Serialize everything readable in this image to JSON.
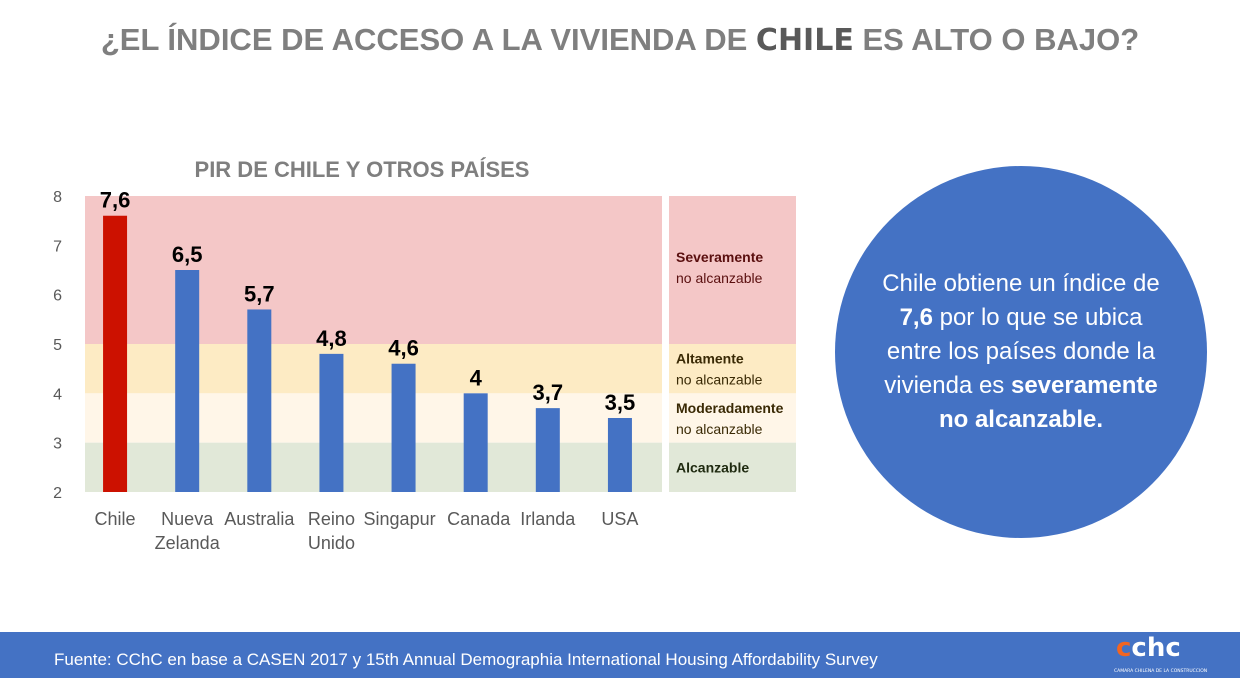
{
  "title": {
    "pre": "¿EL ÍNDICE DE ACCESO A LA VIVIENDA DE ",
    "highlight": "CHILE",
    "post": " ES ALTO O BAJO?"
  },
  "chart_data": {
    "type": "bar",
    "title": "PIR DE CHILE Y OTROS PAÍSES",
    "categories": [
      "Chile",
      "Nueva Zelanda",
      "Australia",
      "Reino Unido",
      "Singapur",
      "Canada",
      "Irlanda",
      "USA"
    ],
    "category_lines": [
      [
        "Chile"
      ],
      [
        "Nueva",
        "Zelanda"
      ],
      [
        "Australia"
      ],
      [
        "Reino",
        "Unido"
      ],
      [
        "Singapur"
      ],
      [
        "Canada"
      ],
      [
        "Irlanda"
      ],
      [
        "USA"
      ]
    ],
    "values": [
      7.6,
      6.5,
      5.7,
      4.8,
      4.6,
      4,
      3.7,
      3.5
    ],
    "data_labels": [
      "7,6",
      "6,5",
      "5,7",
      "4,8",
      "4,6",
      "4",
      "3,7",
      "3,5"
    ],
    "ylim": [
      2,
      8
    ],
    "yticks": [
      2,
      3,
      4,
      5,
      6,
      7,
      8
    ],
    "bar_colors": {
      "highlight": "#cc1100",
      "default": "#4472c4"
    },
    "bands": [
      {
        "from": 5,
        "to": 8,
        "color": "#f4c7c7",
        "label_bold": "Severamente",
        "label": "no alcanzable",
        "text_color": "#5a0f0f"
      },
      {
        "from": 4,
        "to": 5,
        "color": "#fdebc4",
        "label_bold": "Altamente",
        "label": "no alcanzable",
        "text_color": "#3a2a05"
      },
      {
        "from": 3,
        "to": 4,
        "color": "#fff6e8",
        "label_bold": "Moderadamente",
        "label": "no alcanzable",
        "text_color": "#3a2a05"
      },
      {
        "from": 2,
        "to": 3,
        "color": "#e1e8d8",
        "label_bold": "Alcanzable",
        "label": "",
        "text_color": "#1f2a10"
      }
    ]
  },
  "callout": {
    "p1": "Chile obtiene un índice de ",
    "b1": "7,6",
    "p2": " por lo que se ubica entre los países donde la vivienda es ",
    "b2": "severamente no alcanzable."
  },
  "footer": {
    "source": "Fuente: CChC en base a CASEN 2017 y 15th Annual Demographia International Housing Affordability Survey",
    "logo_text": "cchc",
    "logo_sub": "CAMARA CHILENA DE LA CONSTRUCCION"
  }
}
